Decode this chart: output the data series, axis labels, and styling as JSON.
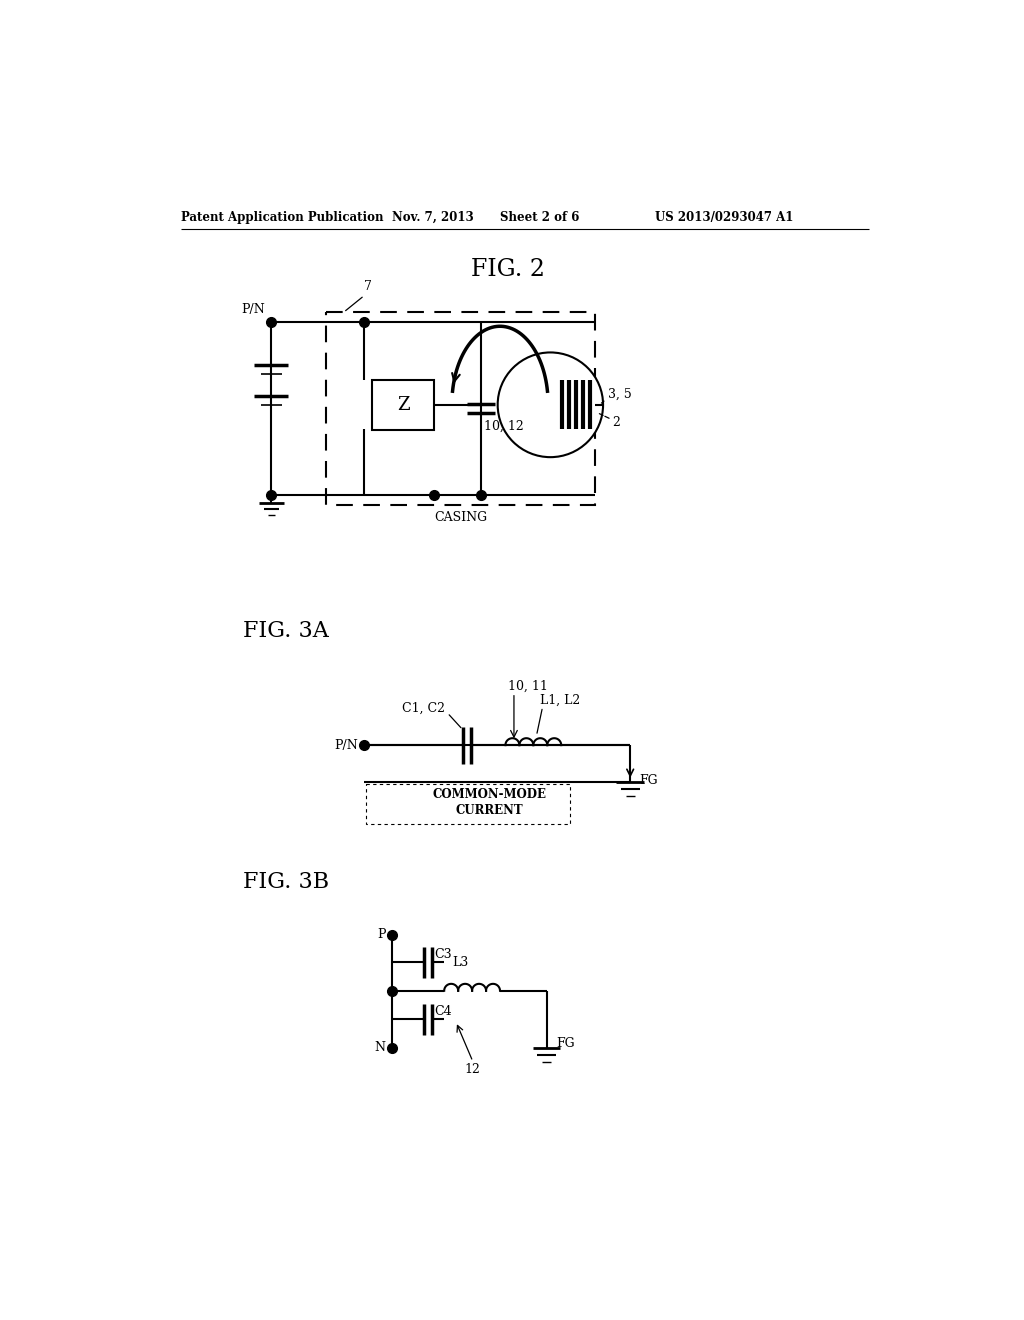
{
  "bg_color": "#ffffff",
  "header_left": "Patent Application Publication",
  "header_mid1": "Nov. 7, 2013",
  "header_mid2": "Sheet 2 of 6",
  "header_right": "US 2013/0293047 A1",
  "fig2_title": "FIG. 2",
  "fig3a_title": "FIG. 3A",
  "fig3b_title": "FIG. 3B",
  "lc": "#000000",
  "lw": 1.5
}
